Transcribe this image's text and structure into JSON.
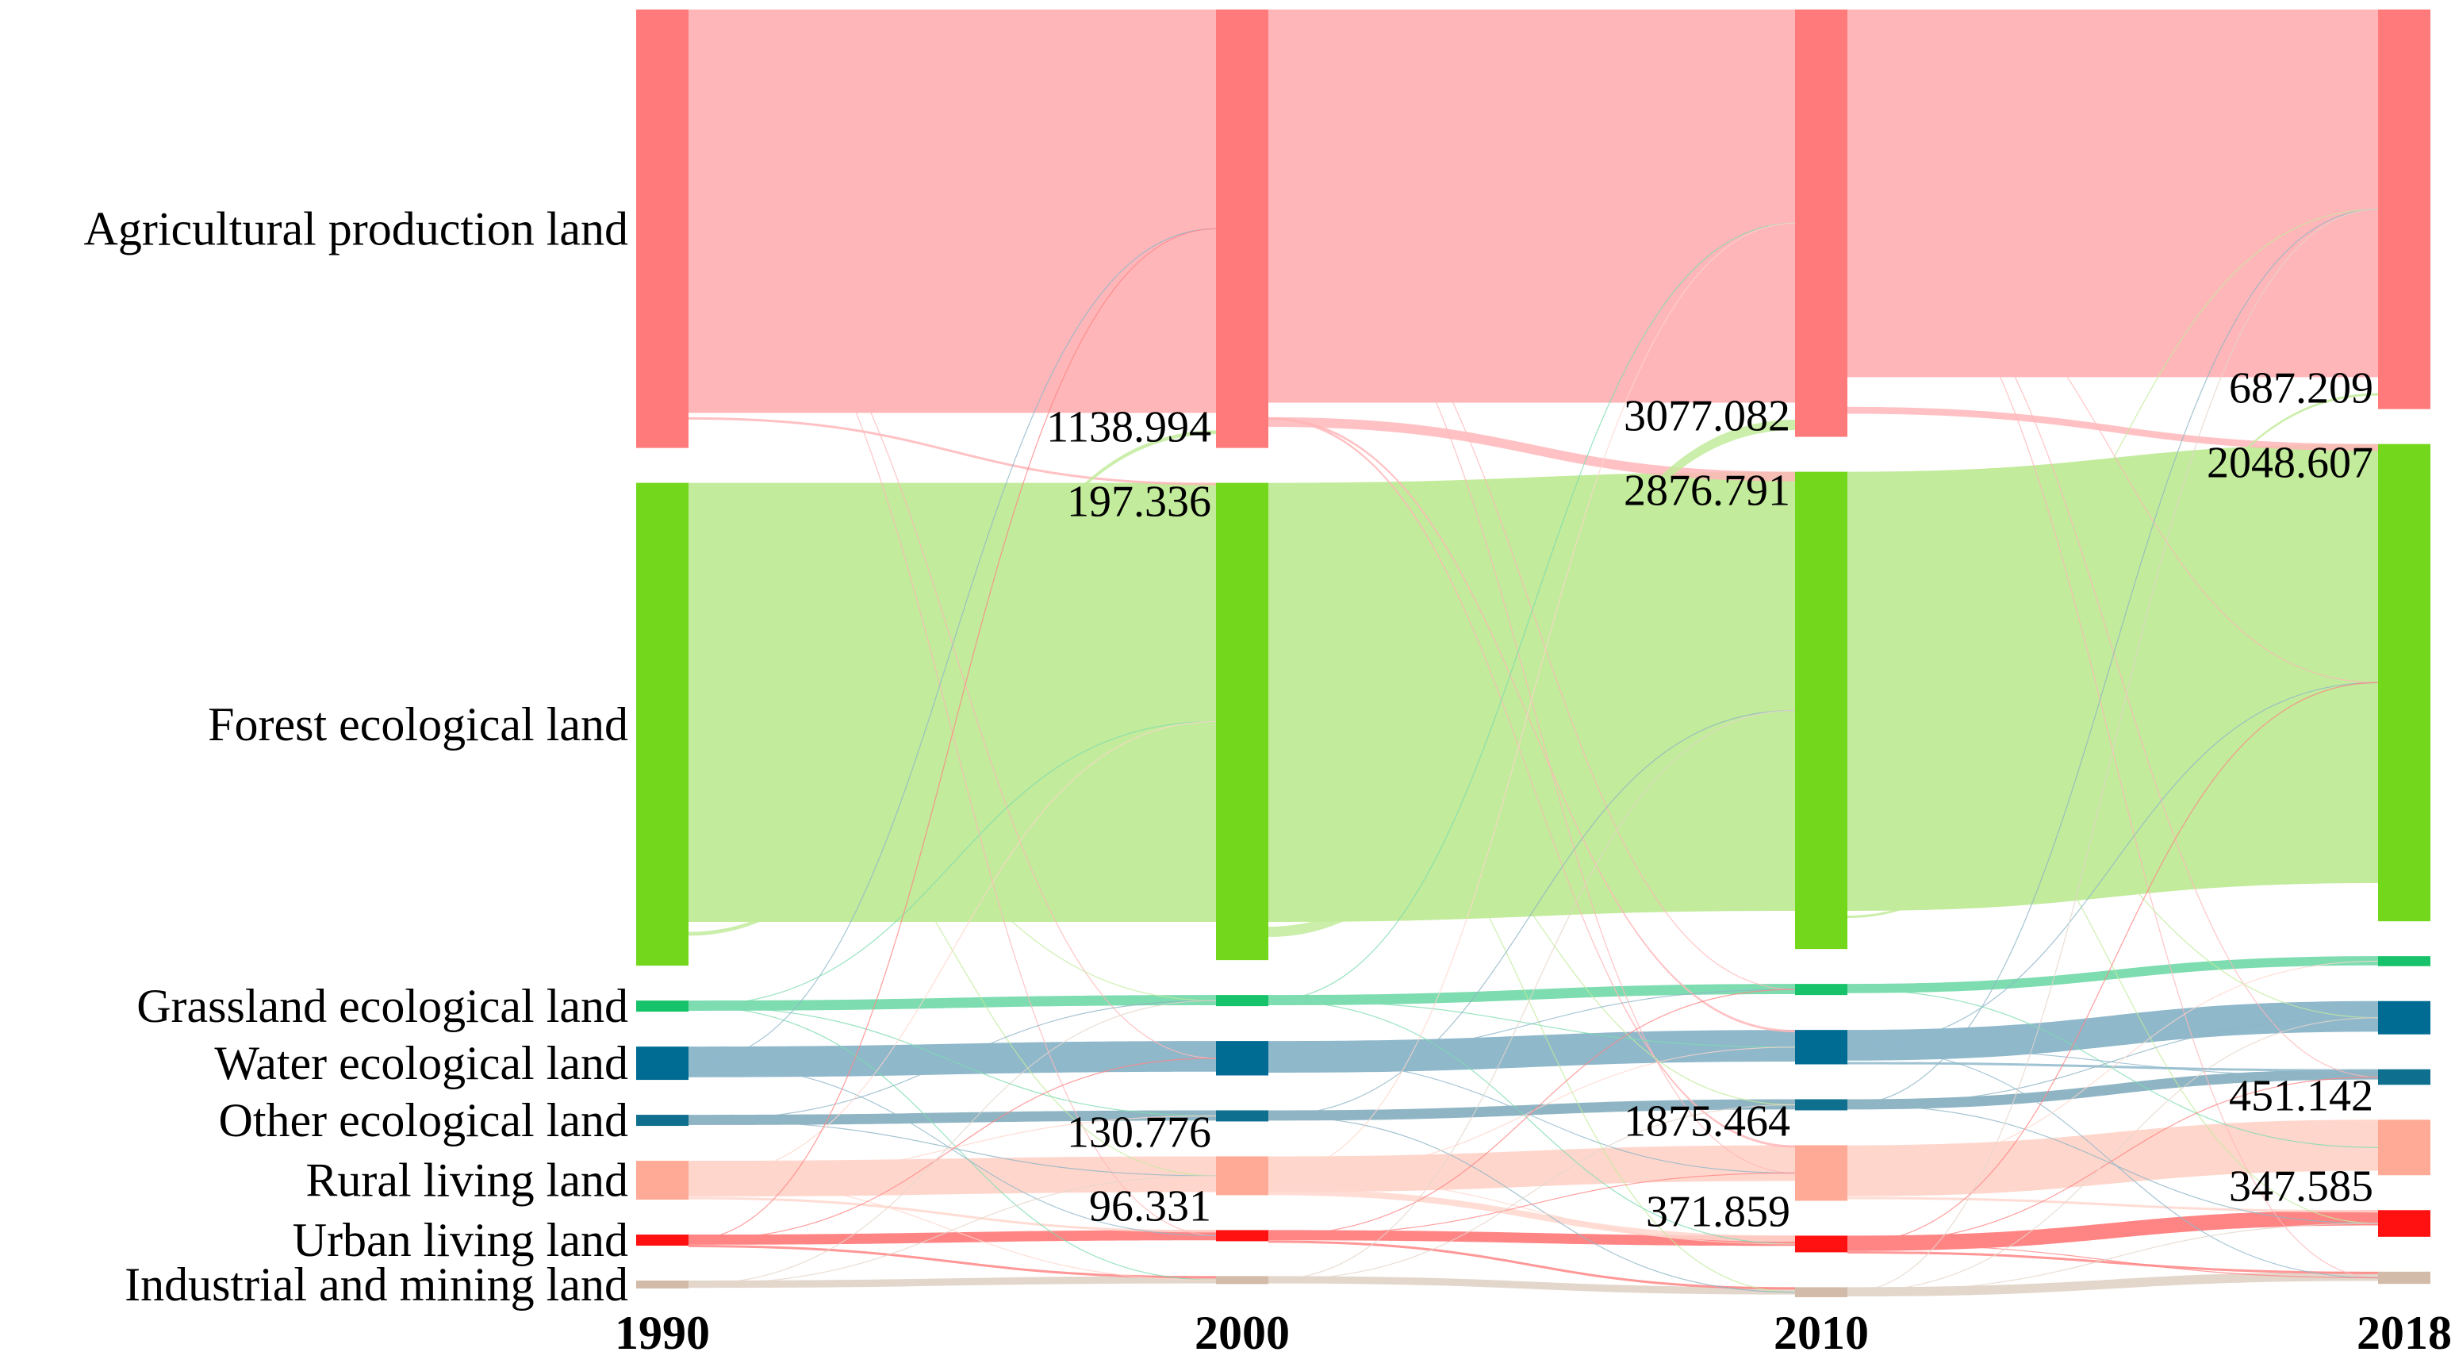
{
  "chart_data": {
    "type": "sankey",
    "title": "",
    "years": [
      "1990",
      "2000",
      "2010",
      "2018"
    ],
    "categories": [
      {
        "name": "Agricultural production land",
        "node": "#ff7a7a",
        "link": "#ffb6b9"
      },
      {
        "name": "Forest ecological land",
        "node": "#73d81c",
        "link": "#c2eb9b"
      },
      {
        "name": "Grassland ecological land",
        "node": "#16c26a",
        "link": "#7ddcb0"
      },
      {
        "name": "Water ecological land",
        "node": "#006c93",
        "link": "#8fb8cb"
      },
      {
        "name": "Other ecological land",
        "node": "#0f6f8e",
        "link": "#8fb5c4"
      },
      {
        "name": "Rural living land",
        "node": "#ffaa96",
        "link": "#ffd6cc"
      },
      {
        "name": "Urban living land",
        "node": "#ff1111",
        "link": "#ff8585"
      },
      {
        "name": "Industrial and mining land",
        "node": "#d2bba8",
        "link": "#e3d6cb"
      }
    ],
    "node_values": [
      [
        7900,
        8700,
        200,
        600,
        200,
        700,
        200,
        120
      ],
      [
        7900,
        8600,
        200,
        620,
        200,
        700,
        200,
        120
      ],
      [
        7700,
        8600,
        200,
        620,
        200,
        1000,
        300,
        180
      ],
      [
        7200,
        8600,
        180,
        600,
        280,
        1000,
        480,
        220
      ]
    ],
    "transitions": [
      {
        "period": 0,
        "from": 0,
        "to": 1,
        "value": 197.336
      },
      {
        "period": 0,
        "from": 1,
        "to": 0,
        "value": 1138.994
      },
      {
        "period": 0,
        "from": 5,
        "to": 6,
        "value": 130.776
      },
      {
        "period": 0,
        "from": 6,
        "to": 7,
        "value": 96.331
      },
      {
        "period": 1,
        "from": 0,
        "to": 1,
        "value": 2876.791
      },
      {
        "period": 1,
        "from": 1,
        "to": 0,
        "value": 3077.082
      },
      {
        "period": 1,
        "from": 0,
        "to": 3,
        "value": 180
      },
      {
        "period": 1,
        "from": 0,
        "to": 5,
        "value": 300
      },
      {
        "period": 1,
        "from": 5,
        "to": 6,
        "value": 1875.464
      },
      {
        "period": 1,
        "from": 6,
        "to": 7,
        "value": 371.859
      },
      {
        "period": 2,
        "from": 0,
        "to": 1,
        "value": 2048.607
      },
      {
        "period": 2,
        "from": 1,
        "to": 0,
        "value": 687.209
      },
      {
        "period": 2,
        "from": 3,
        "to": 4,
        "value": 80
      },
      {
        "period": 2,
        "from": 5,
        "to": 6,
        "value": 451.142
      },
      {
        "period": 2,
        "from": 6,
        "to": 7,
        "value": 347.585
      }
    ],
    "value_labels": [
      {
        "period": 0,
        "text": "1138.994",
        "row": 0
      },
      {
        "period": 0,
        "text": "197.336",
        "row": 1
      },
      {
        "period": 0,
        "text": "130.776",
        "row": 5
      },
      {
        "period": 0,
        "text": "96.331",
        "row": 6
      },
      {
        "period": 1,
        "text": "3077.082",
        "row": 0
      },
      {
        "period": 1,
        "text": "2876.791",
        "row": 1
      },
      {
        "period": 1,
        "text": "1875.464",
        "row": 5
      },
      {
        "period": 1,
        "text": "371.859",
        "row": 6
      },
      {
        "period": 2,
        "text": "687.209",
        "row": 0
      },
      {
        "period": 2,
        "text": "2048.607",
        "row": 1
      },
      {
        "period": 2,
        "text": "451.142",
        "row": 5
      },
      {
        "period": 2,
        "text": "347.585",
        "row": 6
      }
    ]
  }
}
